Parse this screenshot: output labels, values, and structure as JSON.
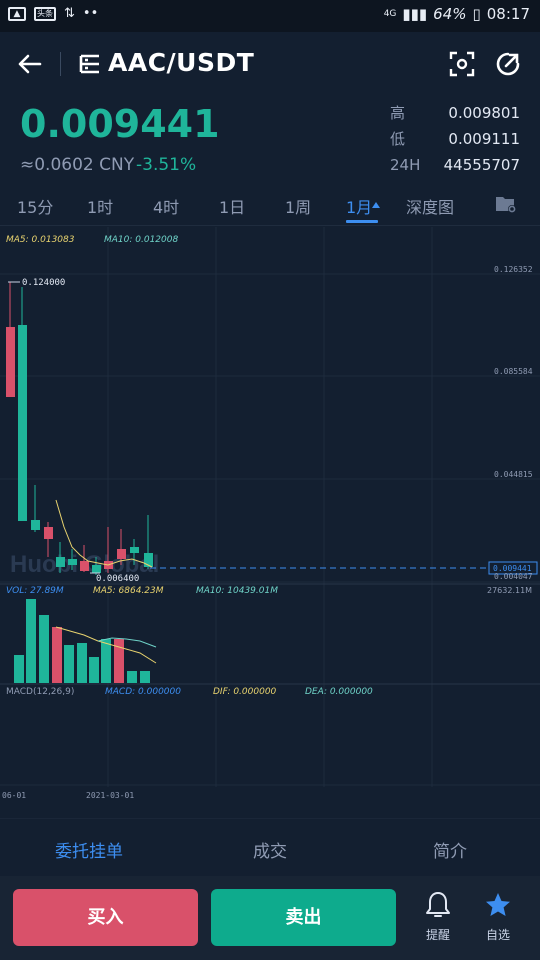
{
  "status_bar": {
    "left_icons": [
      "image-icon",
      "news-icon",
      "usb-icon",
      "more-icon"
    ],
    "news_label": "头条",
    "network": "4G",
    "battery": "64%",
    "time": "08:17"
  },
  "header": {
    "pair": "AAC/USDT"
  },
  "price": {
    "last": "0.009441",
    "cny": "≈0.0602 CNY",
    "change": "-3.51%"
  },
  "stats": [
    {
      "label": "高",
      "value": "0.009801"
    },
    {
      "label": "低",
      "value": "0.009111"
    },
    {
      "label": "24H",
      "value": "44555707"
    }
  ],
  "tabs": [
    "15分",
    "1时",
    "4时",
    "1日",
    "1周",
    "1月",
    "深度图"
  ],
  "active_tab": "1月",
  "main_chart": {
    "ma5": "MA5: 0.013083",
    "ma10": "MA10: 0.012008",
    "y_ticks": [
      "0.126352",
      "0.085584",
      "0.044815",
      "0.009441",
      "0.004047"
    ],
    "high_label": "0.124000",
    "low_label": "0.006400",
    "watermark": "Huobi Global"
  },
  "vol_chart": {
    "vol": "VOL: 27.89M",
    "ma5": "MA5: 6864.23M",
    "ma10": "MA10: 10439.01M",
    "max": "27632.11M"
  },
  "macd_chart": {
    "title": "MACD(12,26,9)",
    "macd": "MACD: 0.000000",
    "dif": "DIF: 0.000000",
    "dea": "DEA: 0.000000"
  },
  "x_labels": [
    "06-01",
    "2021-03-01"
  ],
  "bottom_tabs": [
    "委托挂单",
    "成交",
    "简介"
  ],
  "active_bottom_tab": "委托挂单",
  "actions": {
    "buy": "买入",
    "sell": "卖出",
    "alert": "提醒",
    "favorite": "自选"
  },
  "colors": {
    "up": "#1fb59a",
    "down": "#d9516a",
    "accent": "#3d8ef0",
    "ma5": "#e8d36f",
    "ma10": "#6fd3c8"
  }
}
